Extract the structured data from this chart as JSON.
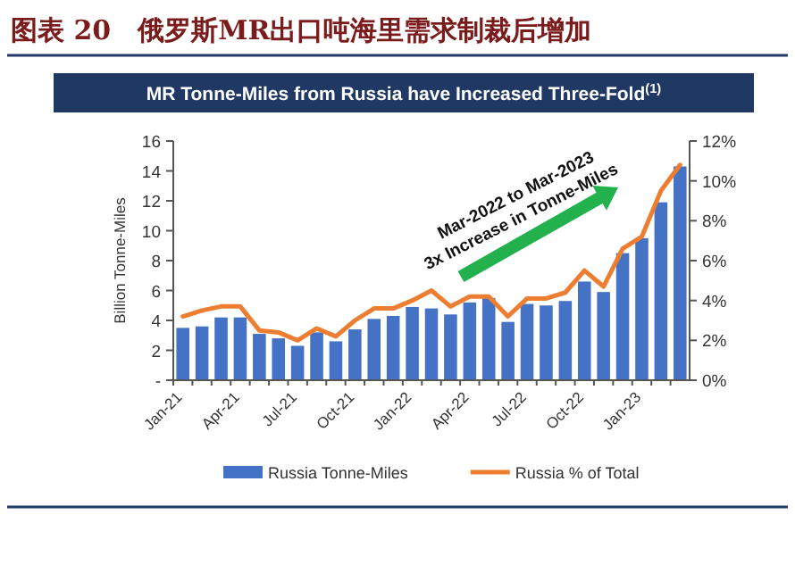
{
  "chart_data": {
    "type": "bar",
    "title": "图表 20　俄罗斯MR出口吨海里需求制裁后增加",
    "subtitle": "MR Tonne-Miles from Russia have Increased Three-Fold$^{(1)}$",
    "categories": [
      "Jan-21",
      null,
      null,
      "Apr-21",
      null,
      null,
      "Jul-21",
      null,
      null,
      "Oct-21",
      null,
      null,
      "Jan-22",
      null,
      null,
      "Apr-22",
      null,
      null,
      "Jul-22",
      null,
      null,
      "Oct-22",
      null,
      null,
      "Jan-23",
      null,
      null
    ],
    "series": [
      {
        "name": "Russia Tonne-Miles",
        "color": "#4472c4",
        "values": [
          3.5,
          3.6,
          4.2,
          4.2,
          3.1,
          2.8,
          2.3,
          3.2,
          2.6,
          3.4,
          4.1,
          4.3,
          4.9,
          4.8,
          4.4,
          5.2,
          5.5,
          3.9,
          5.1,
          5.0,
          5.3,
          6.6,
          5.9,
          8.5,
          9.5,
          11.9,
          14.3
        ]
      },
      {
        "name": "Russia % of Total",
        "type": "line",
        "axis": "y2",
        "color": "#ed7d31",
        "values": [
          3.2,
          3.5,
          3.7,
          3.7,
          2.5,
          2.4,
          2.0,
          2.6,
          2.2,
          3.0,
          3.6,
          3.6,
          4.0,
          4.5,
          3.7,
          4.2,
          4.2,
          3.2,
          4.1,
          4.1,
          4.4,
          5.5,
          4.7,
          6.6,
          7.2,
          9.5,
          10.8
        ]
      }
    ],
    "ylabel": "Billion Tonne-Miles",
    "ylim": [
      0,
      16
    ],
    "yticks": [
      {
        "value": 0,
        "label": "-"
      },
      2,
      4,
      6,
      8,
      10,
      12,
      14,
      16
    ],
    "y2lim": [
      0,
      12
    ],
    "y2ticks": [
      {
        "value": 0,
        "label": "0%"
      },
      {
        "value": 2,
        "label": "2%"
      },
      {
        "value": 4,
        "label": "4%"
      },
      {
        "value": 6,
        "label": "6%"
      },
      {
        "value": 8,
        "label": "8%"
      },
      {
        "value": 10,
        "label": "10%"
      },
      {
        "value": 12,
        "label": "12%"
      }
    ],
    "annotations": [
      "Mar-2022 to Mar-2023",
      "3x Increase in Tonne-Miles"
    ],
    "legend": "bottom",
    "grid": false
  }
}
